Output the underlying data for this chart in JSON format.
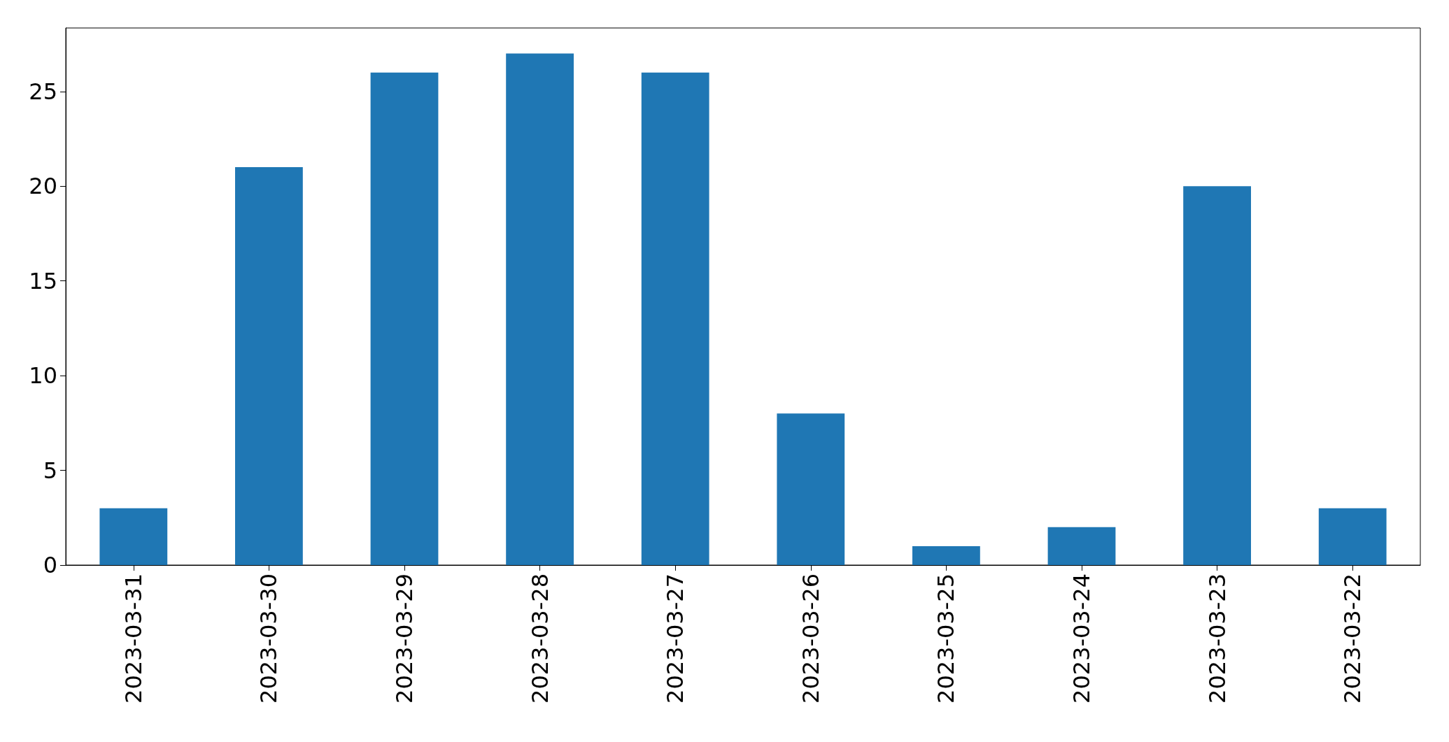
{
  "chart_data": {
    "type": "bar",
    "categories": [
      "2023-03-31",
      "2023-03-30",
      "2023-03-29",
      "2023-03-28",
      "2023-03-27",
      "2023-03-26",
      "2023-03-25",
      "2023-03-24",
      "2023-03-23",
      "2023-03-22"
    ],
    "values": [
      3,
      21,
      26,
      27,
      26,
      8,
      1,
      2,
      20,
      3
    ],
    "color": "#1f77b4",
    "ylim": [
      0,
      28.35
    ],
    "yticks": [
      0,
      5,
      10,
      15,
      20,
      25
    ],
    "grid": false
  }
}
